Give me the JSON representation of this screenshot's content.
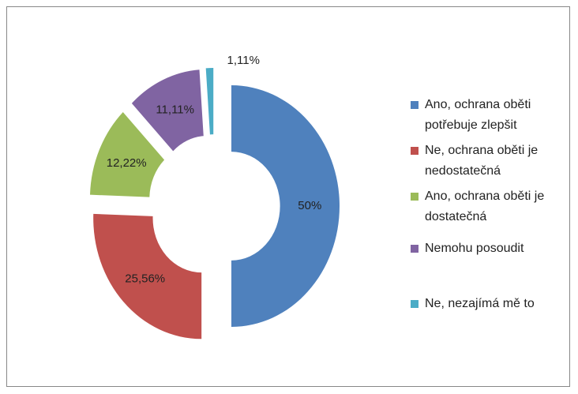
{
  "chart_data": {
    "type": "doughnut",
    "categories": [
      "Ano, ochrana oběti potřebuje zlepšit",
      "Ne, ochrana oběti je nedostatečná",
      "Ano, ochrana oběti je dostatečná",
      "Nemohu posoudit",
      "Ne, nezajímá mě to"
    ],
    "values": [
      50,
      25.56,
      12.22,
      11.11,
      1.11
    ],
    "value_labels": [
      "50%",
      "25,56%",
      "12,22%",
      "11,11%",
      "1,11%"
    ],
    "colors": [
      "#4f81bd",
      "#c0504d",
      "#9bbb59",
      "#8064a2",
      "#4bacc6"
    ],
    "legend": "right"
  }
}
